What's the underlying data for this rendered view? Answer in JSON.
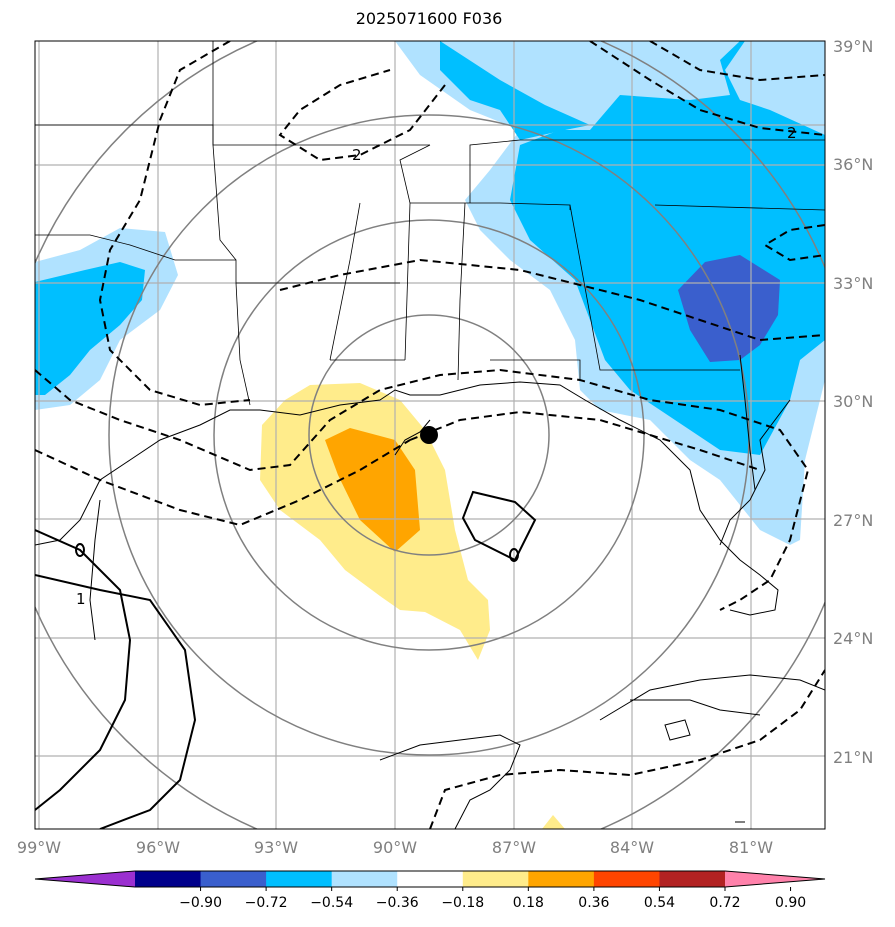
{
  "title": "2025071600 F036",
  "lat_labels": [
    "39°N",
    "36°N",
    "33°N",
    "30°N",
    "27°N",
    "24°N",
    "21°N"
  ],
  "lon_labels": [
    "99°W",
    "96°W",
    "93°W",
    "90°W",
    "87°W",
    "84°W",
    "81°W"
  ],
  "contour_labels": [
    "2",
    "2",
    "1"
  ],
  "colorbar": {
    "tick_labels": [
      "−0.90",
      "−0.72",
      "−0.54",
      "−0.36",
      "−0.18",
      "0.18",
      "0.36",
      "0.54",
      "0.72",
      "0.90"
    ],
    "colors": [
      "#9b30d0",
      "#00008b",
      "#3a5fcd",
      "#00bfff",
      "#b0e2ff",
      "#ffffff",
      "#ffec8b",
      "#ffa500",
      "#ff4500",
      "#b22222",
      "#ff82ab"
    ]
  },
  "marker": {
    "symbol": "storm-center-dot"
  }
}
